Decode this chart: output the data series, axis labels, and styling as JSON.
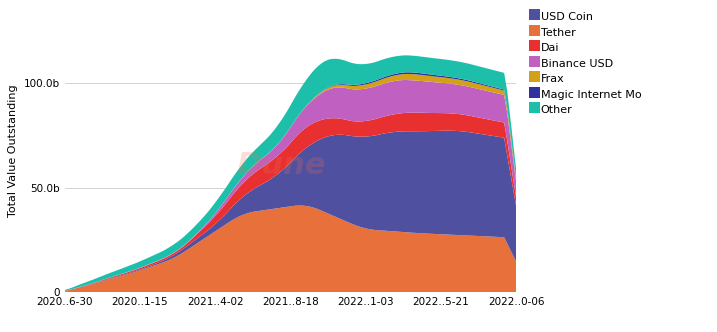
{
  "x_labels": [
    "2020..6-30",
    "2020..1-15",
    "2021..4-02",
    "2021..8-18",
    "2022..1-03",
    "2022..5-21",
    "2022..0-06"
  ],
  "ylabel": "Total Value Outstanding",
  "y_tick_labels": [
    "0",
    "50.0b",
    "100.0b"
  ],
  "y_ticks": [
    0,
    50,
    100
  ],
  "background_color": "#ffffff",
  "grid_color": "#cccccc",
  "watermark_color": "#e87050",
  "series_names": [
    "Tether",
    "USD Coin",
    "Dai",
    "Binance USD",
    "Frax",
    "Magic Internet Mo",
    "Other"
  ],
  "series_colors": [
    "#e8703a",
    "#5050a0",
    "#e83030",
    "#c060c0",
    "#d4a017",
    "#3030a0",
    "#1ebfaa"
  ],
  "legend_names": [
    "USD Coin",
    "Tether",
    "Dai",
    "Binance USD",
    "Frax",
    "Magic Internet Mo",
    "Other"
  ],
  "legend_colors": [
    "#5050a0",
    "#e8703a",
    "#e83030",
    "#c060c0",
    "#d4a017",
    "#3030a0",
    "#1ebfaa"
  ],
  "tick_fontsize": 7.5,
  "legend_fontsize": 8,
  "ylabel_fontsize": 8,
  "n_points": 150,
  "x_tick_positions": [
    0,
    21.4,
    42.9,
    64.3,
    85.7,
    107.1,
    128.6
  ]
}
